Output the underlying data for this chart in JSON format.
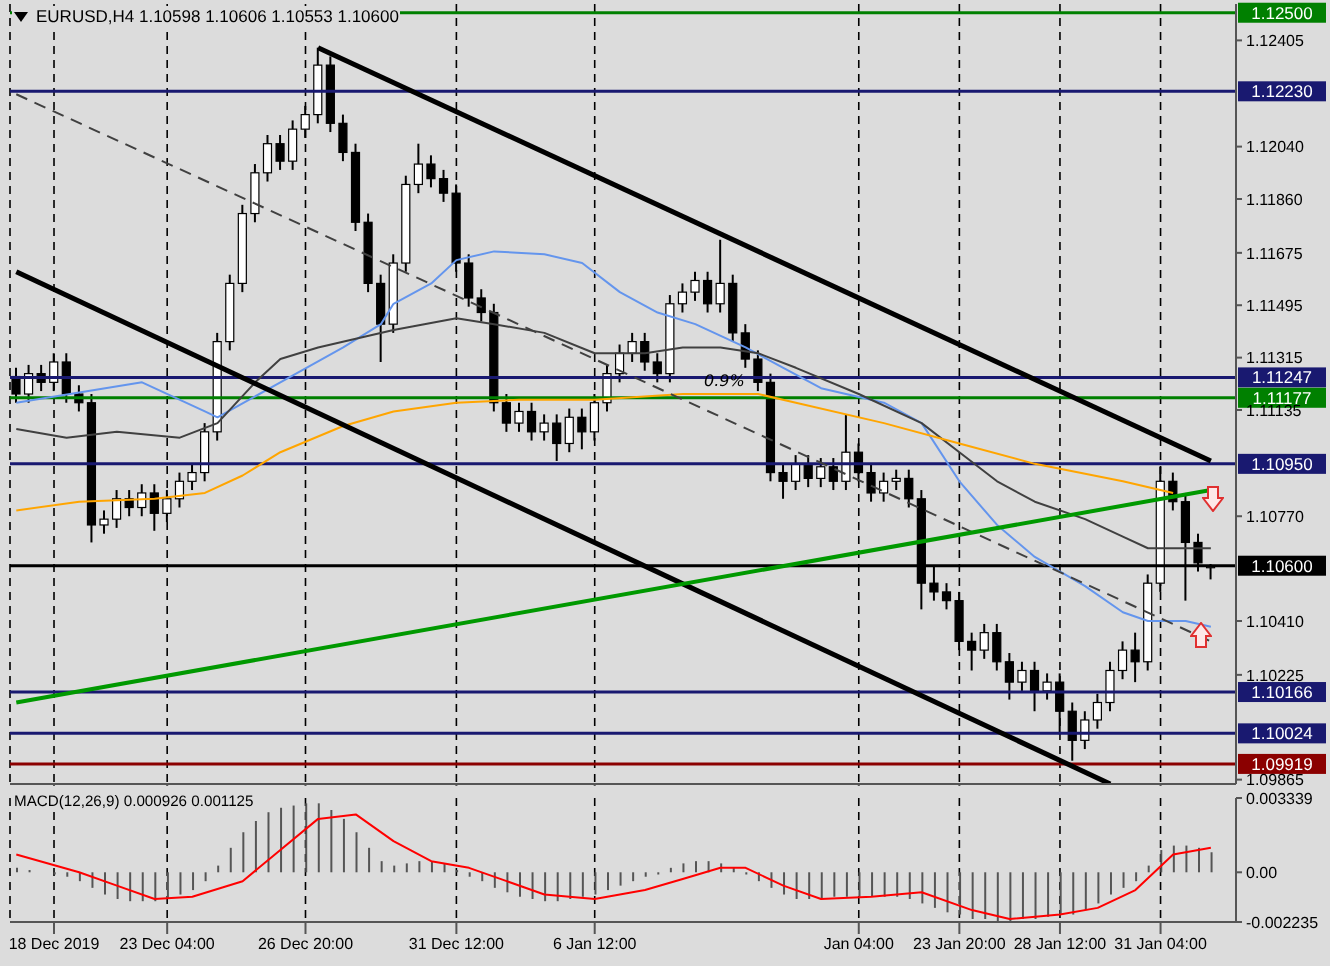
{
  "chart_data": [
    {
      "type": "candlestick",
      "title": "EURUSD,H4  1.10598 1.10606 1.10553 1.10600",
      "categories": [
        null,
        null,
        null,
        null,
        null,
        null,
        null,
        null,
        null,
        null,
        null,
        null,
        null,
        null,
        null,
        null,
        null,
        null,
        null,
        null,
        null,
        null,
        null,
        null,
        null,
        null,
        null,
        null,
        null,
        null,
        null,
        null,
        null,
        null,
        null,
        null,
        null,
        null,
        null,
        null,
        null,
        null,
        null,
        null,
        null,
        null,
        null,
        null,
        null,
        null,
        null,
        null,
        null,
        null,
        null,
        null,
        null,
        null,
        null,
        null,
        null,
        null,
        null,
        null,
        null,
        null,
        null,
        null,
        null,
        null,
        null,
        null,
        null,
        null,
        null,
        null,
        null,
        null,
        null,
        null,
        null,
        null,
        null,
        null,
        null,
        null,
        null,
        null,
        null,
        null,
        null,
        null,
        null,
        null,
        null,
        null
      ],
      "ohlc": [
        [
          1.1125,
          1.1128,
          1.1116,
          1.1119
        ],
        [
          1.1119,
          1.1129,
          1.1116,
          1.1126
        ],
        [
          1.1126,
          1.1129,
          1.112,
          1.1123
        ],
        [
          1.1123,
          1.1133,
          1.112,
          1.113
        ],
        [
          1.113,
          1.1133,
          1.1116,
          1.1119
        ],
        [
          1.1119,
          1.1122,
          1.1113,
          1.1116
        ],
        [
          1.1116,
          1.1119,
          1.1068,
          1.1074
        ],
        [
          1.1074,
          1.1079,
          1.1071,
          1.1076
        ],
        [
          1.1076,
          1.1086,
          1.1073,
          1.1083
        ],
        [
          1.1083,
          1.1086,
          1.1077,
          1.108
        ],
        [
          1.108,
          1.1088,
          1.1077,
          1.1085
        ],
        [
          1.1085,
          1.1088,
          1.1072,
          1.1078
        ],
        [
          1.1078,
          1.1086,
          1.1075,
          1.1083
        ],
        [
          1.1083,
          1.1092,
          1.108,
          1.1089
        ],
        [
          1.1089,
          1.1095,
          1.1086,
          1.1092
        ],
        [
          1.1092,
          1.1109,
          1.1089,
          1.1106
        ],
        [
          1.1106,
          1.114,
          1.1103,
          1.1137
        ],
        [
          1.1137,
          1.116,
          1.1134,
          1.1157
        ],
        [
          1.1157,
          1.1184,
          1.1154,
          1.1181
        ],
        [
          1.1181,
          1.1198,
          1.1178,
          1.1195
        ],
        [
          1.1195,
          1.1208,
          1.1192,
          1.1205
        ],
        [
          1.1205,
          1.1208,
          1.1196,
          1.1199
        ],
        [
          1.1199,
          1.1213,
          1.1196,
          1.121
        ],
        [
          1.121,
          1.1218,
          1.1207,
          1.1215
        ],
        [
          1.1215,
          1.1238,
          1.1212,
          1.1232
        ],
        [
          1.1232,
          1.1235,
          1.1209,
          1.1212
        ],
        [
          1.1212,
          1.1215,
          1.1199,
          1.1202
        ],
        [
          1.1202,
          1.1205,
          1.1175,
          1.1178
        ],
        [
          1.1178,
          1.1181,
          1.1154,
          1.1157
        ],
        [
          1.1157,
          1.116,
          1.113,
          1.1143
        ],
        [
          1.1143,
          1.1167,
          1.114,
          1.1164
        ],
        [
          1.1164,
          1.1194,
          1.1161,
          1.1191
        ],
        [
          1.1191,
          1.1205,
          1.1188,
          1.1198
        ],
        [
          1.1198,
          1.1201,
          1.119,
          1.1193
        ],
        [
          1.1193,
          1.1196,
          1.1185,
          1.1188
        ],
        [
          1.1188,
          1.1191,
          1.1161,
          1.1164
        ],
        [
          1.1164,
          1.1167,
          1.1149,
          1.1152
        ],
        [
          1.1152,
          1.1155,
          1.1144,
          1.1147
        ],
        [
          1.1147,
          1.115,
          1.1113,
          1.1116
        ],
        [
          1.1116,
          1.1119,
          1.1106,
          1.1109
        ],
        [
          1.1109,
          1.1116,
          1.1106,
          1.1113
        ],
        [
          1.1113,
          1.1116,
          1.1103,
          1.1106
        ],
        [
          1.1106,
          1.1112,
          1.1103,
          1.1109
        ],
        [
          1.1109,
          1.1112,
          1.1096,
          1.1102
        ],
        [
          1.1102,
          1.1114,
          1.1099,
          1.1111
        ],
        [
          1.1111,
          1.1114,
          1.11,
          1.1106
        ],
        [
          1.1106,
          1.1119,
          1.1103,
          1.1116
        ],
        [
          1.1116,
          1.1129,
          1.1113,
          1.1126
        ],
        [
          1.1126,
          1.1136,
          1.1123,
          1.1133
        ],
        [
          1.1133,
          1.114,
          1.113,
          1.1137
        ],
        [
          1.1137,
          1.114,
          1.1127,
          1.113
        ],
        [
          1.113,
          1.1133,
          1.1123,
          1.1126
        ],
        [
          1.1126,
          1.1153,
          1.1123,
          1.115
        ],
        [
          1.115,
          1.1157,
          1.1147,
          1.1154
        ],
        [
          1.1154,
          1.1161,
          1.1151,
          1.1158
        ],
        [
          1.1158,
          1.1161,
          1.1147,
          1.115
        ],
        [
          1.115,
          1.1172,
          1.1147,
          1.1157
        ],
        [
          1.1157,
          1.116,
          1.1137,
          1.114
        ],
        [
          1.114,
          1.1143,
          1.1128,
          1.1131
        ],
        [
          1.1131,
          1.1134,
          1.112,
          1.1123
        ],
        [
          1.1123,
          1.1126,
          1.1089,
          1.1092
        ],
        [
          1.1092,
          1.1095,
          1.1083,
          1.1089
        ],
        [
          1.1089,
          1.1098,
          1.1086,
          1.1095
        ],
        [
          1.1095,
          1.1098,
          1.1087,
          1.109
        ],
        [
          1.109,
          1.1097,
          1.1087,
          1.1094
        ],
        [
          1.1094,
          1.1097,
          1.1086,
          1.1089
        ],
        [
          1.1089,
          1.1112,
          1.1086,
          1.1099
        ],
        [
          1.1099,
          1.1102,
          1.1089,
          1.1092
        ],
        [
          1.1092,
          1.1095,
          1.1082,
          1.1085
        ],
        [
          1.1085,
          1.1092,
          1.1082,
          1.1089
        ],
        [
          1.1089,
          1.1093,
          1.1086,
          1.109
        ],
        [
          1.109,
          1.1093,
          1.108,
          1.1083
        ],
        [
          1.1083,
          1.1086,
          1.1045,
          1.1054
        ],
        [
          1.1054,
          1.106,
          1.1048,
          1.1051
        ],
        [
          1.1051,
          1.1054,
          1.1045,
          1.1048
        ],
        [
          1.1048,
          1.1051,
          1.1031,
          1.1034
        ],
        [
          1.1034,
          1.1037,
          1.1024,
          1.1031
        ],
        [
          1.1031,
          1.104,
          1.1028,
          1.1037
        ],
        [
          1.1037,
          1.104,
          1.1024,
          1.1027
        ],
        [
          1.1027,
          1.103,
          1.1014,
          1.102
        ],
        [
          1.102,
          1.1027,
          1.1017,
          1.1024
        ],
        [
          1.1024,
          1.1027,
          1.101,
          1.1017
        ],
        [
          1.1017,
          1.1023,
          1.1014,
          1.102
        ],
        [
          1.102,
          1.1023,
          1.1002,
          1.101
        ],
        [
          1.101,
          1.1013,
          1.0993,
          1.1
        ],
        [
          1.1,
          1.101,
          1.0997,
          1.1007
        ],
        [
          1.1007,
          1.1016,
          1.1004,
          1.1013
        ],
        [
          1.1013,
          1.1027,
          1.101,
          1.1024
        ],
        [
          1.1024,
          1.1034,
          1.1021,
          1.1031
        ],
        [
          1.1031,
          1.1037,
          1.102,
          1.1027
        ],
        [
          1.1027,
          1.1057,
          1.1024,
          1.1054
        ],
        [
          1.1054,
          1.1094,
          1.1051,
          1.1089
        ],
        [
          1.1089,
          1.1092,
          1.1079,
          1.1082
        ],
        [
          1.1082,
          1.1085,
          1.1048,
          1.1068
        ],
        [
          1.1068,
          1.1071,
          1.1058,
          1.1061
        ],
        [
          1.10598,
          1.10606,
          1.10553,
          1.106
        ]
      ],
      "ylim": [
        1.0985,
        1.1253
      ],
      "yticks": [
        {
          "value": 1.12405,
          "label": "1.12405"
        },
        {
          "value": 1.1204,
          "label": "1.12040"
        },
        {
          "value": 1.1186,
          "label": "1.11860"
        },
        {
          "value": 1.11675,
          "label": "1.11675"
        },
        {
          "value": 1.11495,
          "label": "1.11495"
        },
        {
          "value": 1.11315,
          "label": "1.11315"
        },
        {
          "value": 1.11135,
          "label": "1.11135"
        },
        {
          "value": 1.1077,
          "label": "1.10770"
        },
        {
          "value": 1.1041,
          "label": "1.10410"
        },
        {
          "value": 1.10225,
          "label": "1.10225"
        },
        {
          "value": 1.09865,
          "label": "1.09865"
        }
      ],
      "grid": "x",
      "series": [
        {
          "type": "line",
          "color": "#6495ed",
          "values": [
            1.1116,
            null,
            null,
            null,
            null,
            null,
            null,
            null,
            null,
            null,
            1.1123,
            null,
            null,
            null,
            null,
            1.1113,
            1.1111,
            null,
            null,
            null,
            null,
            1.1123,
            null,
            null,
            null,
            null,
            1.1135,
            null,
            null,
            1.1143,
            1.115,
            null,
            null,
            1.1157,
            null,
            1.1165,
            null,
            null,
            1.1168,
            null,
            null,
            null,
            1.1167,
            null,
            null,
            1.1164,
            null,
            null,
            1.1154,
            null,
            null,
            1.1147,
            null,
            null,
            1.1143,
            null,
            null,
            null,
            1.1135,
            null,
            null,
            1.1128,
            null,
            null,
            1.1121,
            null,
            null,
            null,
            null,
            1.1116,
            null,
            null,
            1.1109,
            null,
            null,
            1.1089,
            null,
            null,
            1.1074,
            null,
            null,
            1.1063,
            null,
            null,
            null,
            1.1053,
            null,
            null,
            1.1044,
            null,
            1.1041,
            null,
            null,
            1.1041,
            null,
            1.1039
          ]
        },
        {
          "type": "line",
          "color": "#404040",
          "values": [
            1.1107,
            null,
            null,
            null,
            1.1104,
            null,
            null,
            null,
            1.1106,
            null,
            null,
            null,
            null,
            1.1104,
            null,
            null,
            1.1109,
            null,
            null,
            1.1123,
            null,
            1.1131,
            null,
            null,
            1.1135,
            null,
            null,
            1.1138,
            null,
            null,
            1.1141,
            null,
            null,
            null,
            null,
            1.1145,
            null,
            null,
            1.1143,
            null,
            null,
            null,
            1.114,
            null,
            null,
            null,
            1.1133,
            null,
            null,
            null,
            1.1133,
            null,
            null,
            1.1135,
            null,
            null,
            1.1135,
            null,
            null,
            1.1133,
            null,
            null,
            1.1128,
            null,
            null,
            null,
            null,
            1.1119,
            null,
            null,
            null,
            null,
            1.1109,
            null,
            null,
            1.1099,
            null,
            null,
            1.1089,
            null,
            null,
            1.1082,
            null,
            null,
            null,
            1.1076,
            null,
            null,
            1.107,
            null,
            1.1066,
            null,
            null,
            1.1066,
            null,
            1.1066
          ]
        },
        {
          "type": "line",
          "color": "#ffa500",
          "values": [
            1.1079,
            null,
            null,
            null,
            null,
            1.1082,
            null,
            null,
            null,
            null,
            null,
            1.1083,
            null,
            null,
            null,
            1.1085,
            null,
            null,
            1.1091,
            null,
            null,
            1.1099,
            null,
            null,
            null,
            null,
            1.1108,
            null,
            null,
            null,
            1.1113,
            null,
            null,
            null,
            null,
            1.1116,
            null,
            null,
            null,
            null,
            1.1117,
            null,
            null,
            null,
            null,
            null,
            1.1117,
            null,
            null,
            null,
            null,
            null,
            null,
            1.1119,
            null,
            null,
            null,
            null,
            null,
            1.1119,
            null,
            null,
            1.1116,
            null,
            null,
            null,
            null,
            null,
            null,
            1.1109,
            null,
            null,
            null,
            null,
            null,
            1.1102,
            null,
            null,
            null,
            null,
            null,
            1.1095,
            null,
            null,
            null,
            null,
            null,
            null,
            1.1089,
            null,
            null,
            null,
            1.1085,
            null,
            null,
            null
          ]
        },
        {
          "type": "line",
          "color": "#000000",
          "values": [
            null,
            null,
            null,
            null,
            null,
            null,
            null,
            null,
            null,
            null,
            null,
            null,
            null,
            null,
            null,
            null,
            null,
            null,
            null,
            null,
            null,
            null,
            null,
            null,
            1.1238,
            null,
            null,
            null,
            null,
            null,
            null,
            null,
            null,
            null,
            null,
            null,
            null,
            null,
            null,
            null,
            null,
            null,
            null,
            null,
            null,
            null,
            null,
            null,
            null,
            null,
            null,
            null,
            null,
            null,
            null,
            null,
            null,
            null,
            null,
            null,
            null,
            null,
            null,
            null,
            null,
            null,
            null,
            null,
            null,
            null,
            null,
            null,
            null,
            null,
            null,
            null,
            null,
            null,
            null,
            null,
            null,
            null,
            null,
            null,
            null,
            null,
            null,
            null,
            null,
            null,
            null,
            null,
            null,
            null,
            null,
            1.1096
          ]
        },
        {
          "type": "line",
          "color": "#000000",
          "values": [
            1.1161,
            null,
            null,
            null,
            null,
            null,
            null,
            null,
            null,
            null,
            null,
            null,
            null,
            null,
            null,
            null,
            null,
            null,
            null,
            null,
            null,
            null,
            null,
            null,
            null,
            null,
            null,
            null,
            null,
            null,
            null,
            null,
            null,
            null,
            null,
            null,
            null,
            null,
            null,
            null,
            null,
            null,
            null,
            null,
            null,
            null,
            null,
            null,
            null,
            null,
            null,
            null,
            null,
            null,
            null,
            null,
            null,
            null,
            null,
            null,
            null,
            null,
            null,
            null,
            null,
            null,
            null,
            null,
            null,
            null,
            null,
            null,
            null,
            null,
            null,
            null,
            null,
            null,
            null,
            null,
            null,
            null,
            null,
            null,
            null,
            null,
            null,
            1.0985,
            null,
            null,
            null,
            null,
            null,
            null,
            null,
            null
          ]
        },
        {
          "type": "line",
          "color": "#404040",
          "line_style": "dashed",
          "values": [
            1.1222,
            null,
            null,
            null,
            null,
            null,
            null,
            null,
            null,
            null,
            null,
            null,
            null,
            null,
            null,
            null,
            null,
            null,
            null,
            null,
            null,
            null,
            null,
            null,
            null,
            null,
            null,
            null,
            null,
            null,
            null,
            null,
            null,
            null,
            null,
            null,
            null,
            null,
            null,
            null,
            null,
            null,
            null,
            null,
            null,
            null,
            null,
            null,
            null,
            null,
            null,
            null,
            null,
            null,
            null,
            null,
            null,
            null,
            null,
            null,
            null,
            null,
            null,
            null,
            null,
            null,
            null,
            null,
            null,
            null,
            null,
            null,
            null,
            null,
            null,
            null,
            null,
            null,
            null,
            null,
            null,
            null,
            null,
            null,
            null,
            null,
            null,
            null,
            null,
            null,
            null,
            null,
            null,
            null,
            null,
            1.1034
          ]
        },
        {
          "type": "line",
          "color": "#009900",
          "values": [
            1.1013,
            null,
            null,
            null,
            null,
            null,
            null,
            null,
            null,
            null,
            null,
            null,
            null,
            null,
            null,
            null,
            null,
            null,
            null,
            null,
            null,
            null,
            null,
            null,
            null,
            null,
            null,
            null,
            null,
            null,
            null,
            null,
            null,
            null,
            null,
            null,
            null,
            null,
            null,
            null,
            null,
            null,
            null,
            null,
            null,
            null,
            null,
            null,
            null,
            null,
            null,
            null,
            null,
            null,
            null,
            null,
            null,
            null,
            null,
            null,
            null,
            null,
            null,
            null,
            null,
            null,
            null,
            null,
            null,
            null,
            null,
            null,
            null,
            null,
            null,
            null,
            null,
            null,
            null,
            null,
            null,
            null,
            null,
            null,
            null,
            null,
            null,
            null,
            null,
            null,
            null,
            null,
            null,
            null,
            null,
            1.1086
          ]
        }
      ],
      "ref_lines": [
        {
          "axis": "y",
          "value": 1.125,
          "label": "1.12500",
          "color": "#008000"
        },
        {
          "axis": "y",
          "value": 1.1223,
          "label": "1.12230",
          "color": "#191970"
        },
        {
          "axis": "y",
          "value": 1.11247,
          "label": "1.11247",
          "color": "#191970"
        },
        {
          "axis": "y",
          "value": 1.11177,
          "label": "1.11177",
          "color": "#008000"
        },
        {
          "axis": "y",
          "value": 1.1095,
          "label": "1.10950",
          "color": "#191970"
        },
        {
          "axis": "y",
          "value": 1.106,
          "label": "1.10600",
          "color": "#000000"
        },
        {
          "axis": "y",
          "value": 1.10166,
          "label": "1.10166",
          "color": "#191970"
        },
        {
          "axis": "y",
          "value": 1.10024,
          "label": "1.10024",
          "color": "#191970"
        },
        {
          "axis": "y",
          "value": 1.09919,
          "label": "1.09919",
          "color": "#8b0000"
        }
      ],
      "annotations": [
        "0.9%"
      ]
    },
    {
      "type": "bar",
      "title": "MACD(12,26,9) 0.000926 0.001125",
      "categories": [
        null,
        null,
        null,
        "18 Dec 2019",
        null,
        null,
        null,
        null,
        null,
        null,
        null,
        null,
        "23 Dec 04:00",
        null,
        null,
        null,
        null,
        null,
        null,
        null,
        null,
        null,
        null,
        "26 Dec 20:00",
        null,
        null,
        null,
        null,
        null,
        null,
        null,
        null,
        null,
        null,
        null,
        "31 Dec 12:00",
        null,
        null,
        null,
        null,
        null,
        null,
        null,
        null,
        null,
        null,
        "6 Jan 12:00",
        null,
        null,
        null,
        null,
        null,
        null,
        null,
        null,
        null,
        null,
        null,
        null,
        null,
        null,
        null,
        null,
        null,
        null,
        null,
        null,
        "Jan 04:00",
        null,
        null,
        null,
        null,
        null,
        null,
        null,
        "23 Jan 20:00",
        null,
        null,
        null,
        null,
        null,
        null,
        null,
        "28 Jan 12:00",
        null,
        null,
        null,
        null,
        null,
        null,
        null,
        "31 Jan 04:00",
        null,
        null,
        null,
        null
      ],
      "ylim": [
        -0.002235,
        0.003339
      ],
      "grid": "x",
      "yticks": [
        {
          "value": 0.003339,
          "label": "0.003339"
        },
        {
          "value": 0,
          "label": "0.00"
        },
        {
          "value": -0.002235,
          "label": "-0.002235"
        }
      ],
      "series": [
        {
          "type": "bar",
          "color": "#555555",
          "values": [
            0.0002,
            0.0001,
            0,
            -0.0001,
            -0.0002,
            -0.0004,
            -0.0007,
            -0.001,
            -0.0012,
            -0.0013,
            -0.0013,
            -0.0013,
            -0.0012,
            -0.001,
            -0.0008,
            -0.0004,
            0.0003,
            0.0011,
            0.0018,
            0.0023,
            0.0027,
            0.0029,
            0.003,
            0.0031,
            0.0031,
            0.0028,
            0.0024,
            0.0018,
            0.0011,
            0.0005,
            0.0003,
            0.0004,
            0.0005,
            0.0005,
            0.0004,
            0.0001,
            -0.0002,
            -0.0004,
            -0.0007,
            -0.0009,
            -0.0011,
            -0.0012,
            -0.0013,
            -0.0013,
            -0.0012,
            -0.0011,
            -0.001,
            -0.0008,
            -0.0006,
            -0.0004,
            -0.0002,
            -0.0001,
            0.0002,
            0.0004,
            0.0005,
            0.0005,
            0.0004,
            0.0002,
            -0.0001,
            -0.0004,
            -0.0007,
            -0.001,
            -0.0012,
            -0.0012,
            -0.0012,
            -0.0011,
            -0.0011,
            -0.0011,
            -0.0011,
            -0.0011,
            -0.0011,
            -0.0012,
            -0.0014,
            -0.0016,
            -0.0018,
            -0.0019,
            -0.0021,
            -0.0021,
            -0.0022,
            -0.0022,
            -0.0021,
            -0.0021,
            -0.002,
            -0.0019,
            -0.0019,
            -0.0017,
            -0.0014,
            -0.001,
            -0.0007,
            -0.0004,
            0.0003,
            0.001,
            0.0012,
            0.0012,
            0.0011,
            0.0009
          ]
        },
        {
          "type": "line",
          "color": "#ff0000",
          "values": [
            0.0008,
            null,
            null,
            null,
            null,
            0,
            null,
            null,
            -0.0006,
            null,
            null,
            -0.0012,
            null,
            null,
            -0.0011,
            null,
            null,
            null,
            -0.0004,
            null,
            null,
            0.001,
            null,
            null,
            0.0024,
            null,
            null,
            0.0026,
            null,
            null,
            0.0014,
            null,
            null,
            0.0005,
            null,
            null,
            0.0002,
            null,
            null,
            -0.0004,
            null,
            null,
            -0.001,
            null,
            null,
            null,
            -0.0012,
            null,
            null,
            null,
            -0.0008,
            null,
            null,
            -0.0003,
            null,
            null,
            0.0002,
            null,
            0.0002,
            null,
            null,
            -0.0006,
            null,
            null,
            -0.0012,
            null,
            null,
            null,
            -0.0011,
            null,
            null,
            null,
            -0.0009,
            null,
            null,
            null,
            -0.0017,
            null,
            null,
            -0.0021,
            null,
            null,
            null,
            -0.0019,
            null,
            null,
            -0.0016,
            null,
            null,
            -0.0008,
            null,
            null,
            0.0008,
            null,
            null,
            0.0011
          ]
        }
      ]
    }
  ]
}
